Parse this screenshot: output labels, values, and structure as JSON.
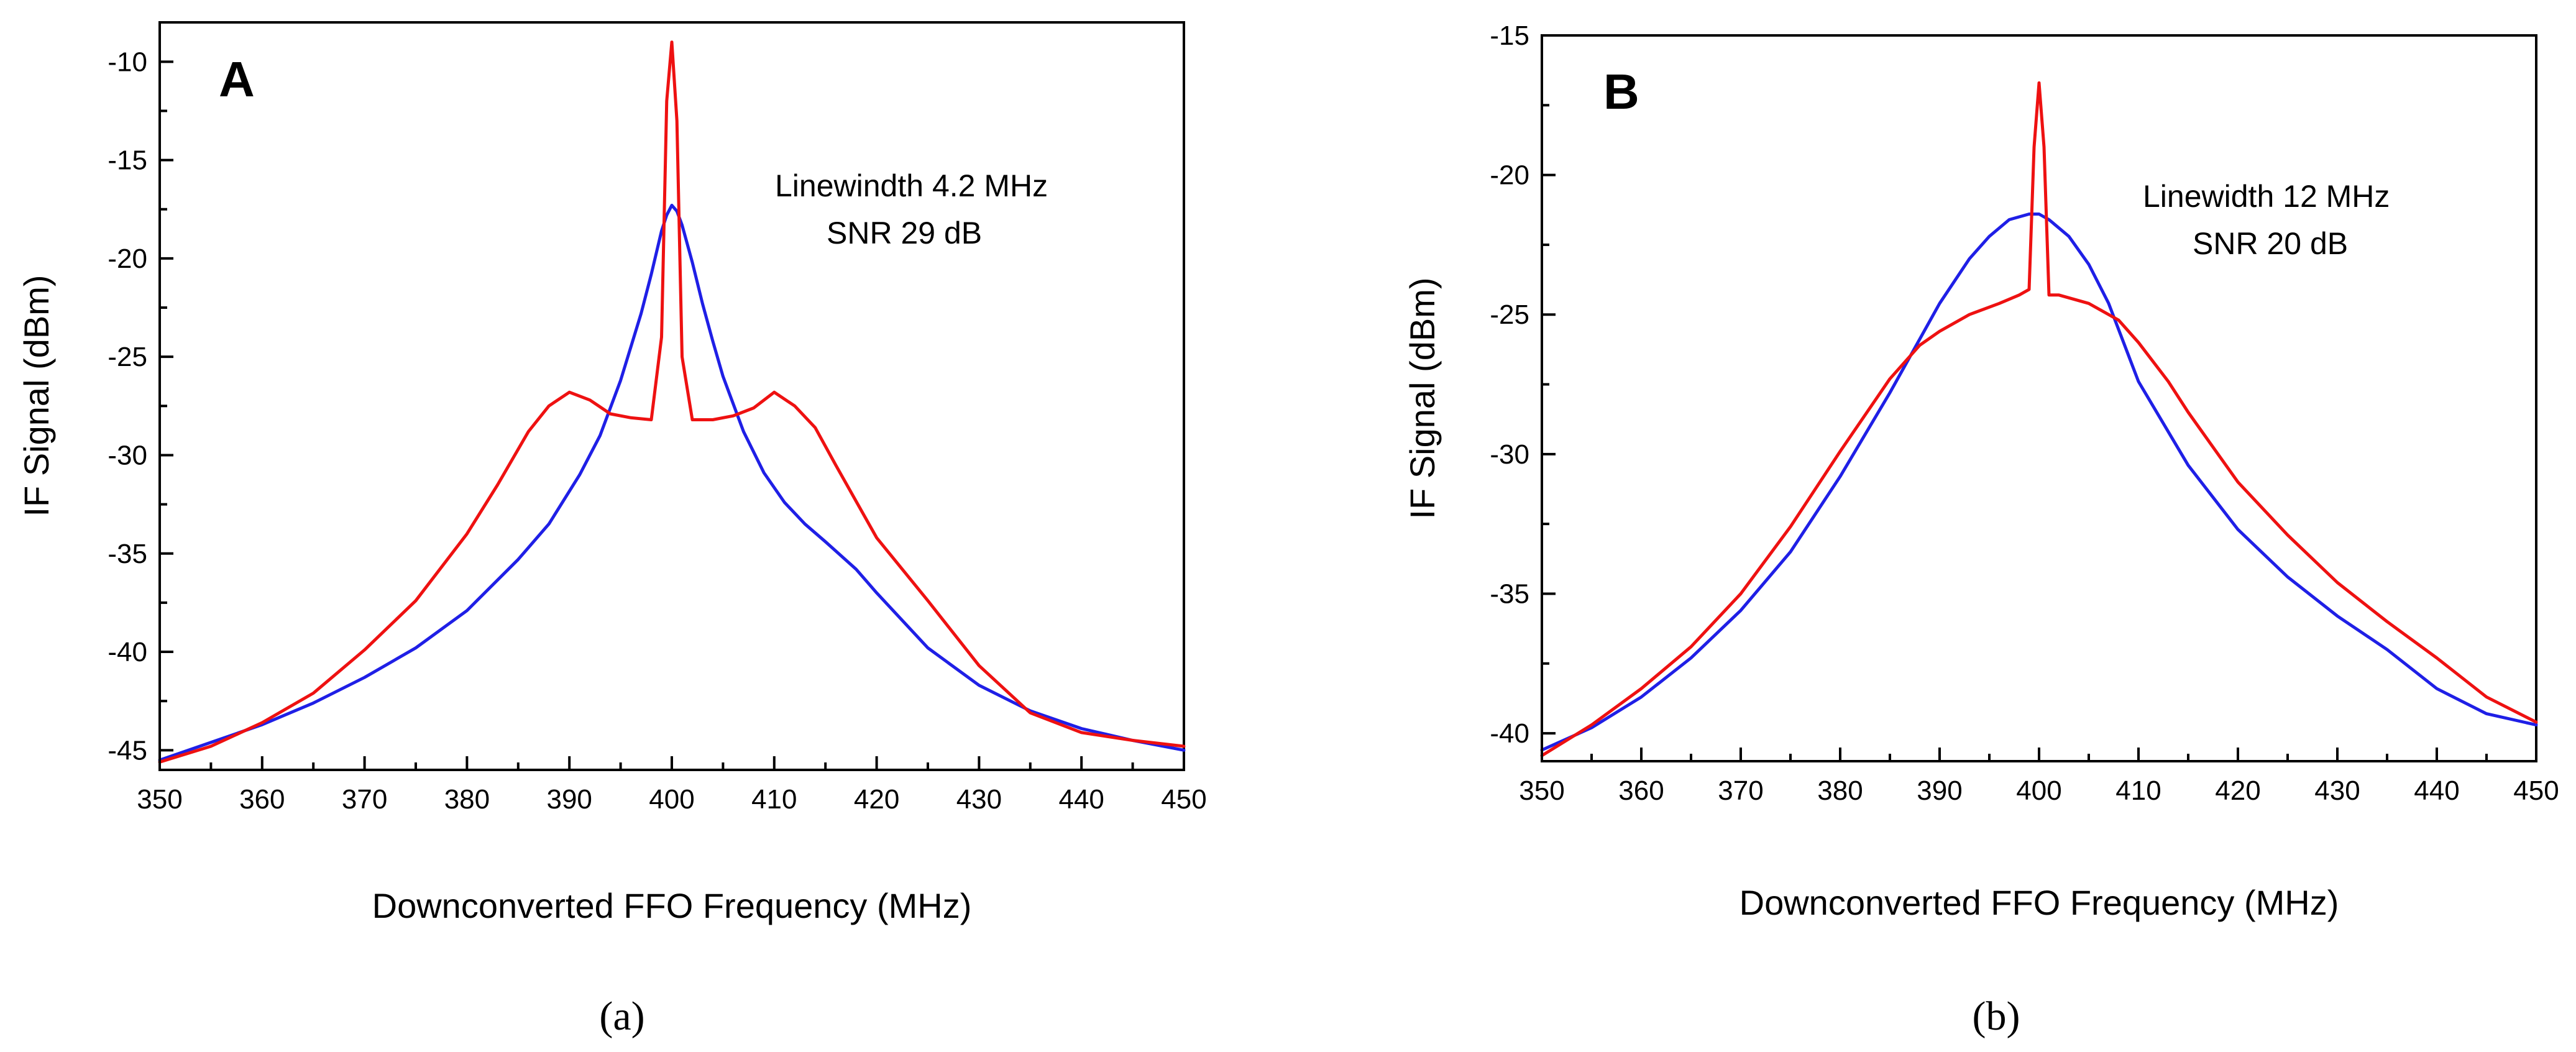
{
  "chart_data": [
    {
      "type": "line",
      "panel_letter": "A",
      "caption": "(a)",
      "xlabel": "Downconverted FFO Frequency (MHz)",
      "ylabel": "IF Signal (dBm)",
      "xlim": [
        350,
        450
      ],
      "ylim": [
        -46,
        -8
      ],
      "xticks": [
        "350",
        "360",
        "370",
        "380",
        "390",
        "400",
        "410",
        "420",
        "430",
        "440",
        "450"
      ],
      "yticks": [
        "-10",
        "-15",
        "-20",
        "-25",
        "-30",
        "-35",
        "-40",
        "-45"
      ],
      "annotation": [
        "Linewindth 4.2 MHz",
        "SNR 29 dB"
      ],
      "series": [
        {
          "name": "blue",
          "color": "#1f1fe6",
          "x": [
            350,
            355,
            360,
            365,
            370,
            375,
            380,
            385,
            388,
            391,
            393,
            395,
            397,
            398,
            399,
            399.5,
            400,
            400.5,
            401,
            402,
            403,
            404,
            405,
            407,
            409,
            411,
            413,
            415,
            418,
            420,
            425,
            430,
            435,
            440,
            445,
            450
          ],
          "y": [
            -45.5,
            -44.6,
            -43.7,
            -42.6,
            -41.3,
            -39.8,
            -37.9,
            -35.3,
            -33.5,
            -31.0,
            -29.0,
            -26.2,
            -22.8,
            -20.8,
            -18.6,
            -17.8,
            -17.3,
            -17.6,
            -18.3,
            -20.2,
            -22.3,
            -24.2,
            -26.0,
            -28.8,
            -30.9,
            -32.4,
            -33.5,
            -34.4,
            -35.8,
            -37.0,
            -39.8,
            -41.7,
            -43.0,
            -43.9,
            -44.5,
            -45.0
          ]
        },
        {
          "name": "red",
          "color": "#ee1111",
          "x": [
            350,
            355,
            360,
            365,
            370,
            375,
            380,
            383,
            386,
            388,
            390,
            392,
            394,
            396,
            398,
            399,
            399.5,
            400,
            400.5,
            401,
            402,
            404,
            406,
            408,
            410,
            412,
            414,
            416,
            420,
            425,
            430,
            435,
            440,
            445,
            450
          ],
          "y": [
            -45.6,
            -44.8,
            -43.6,
            -42.1,
            -39.9,
            -37.4,
            -34.0,
            -31.5,
            -28.8,
            -27.5,
            -26.8,
            -27.2,
            -27.9,
            -28.1,
            -28.2,
            -24.0,
            -12.0,
            -9.0,
            -13.0,
            -25.0,
            -28.2,
            -28.2,
            -28.0,
            -27.6,
            -26.8,
            -27.5,
            -28.6,
            -30.5,
            -34.2,
            -37.4,
            -40.7,
            -43.1,
            -44.1,
            -44.5,
            -44.8
          ]
        }
      ]
    },
    {
      "type": "line",
      "panel_letter": "B",
      "caption": "(b)",
      "xlabel": "Downconverted FFO Frequency (MHz)",
      "ylabel": "IF Signal (dBm)",
      "xlim": [
        350,
        450
      ],
      "ylim": [
        -41,
        -15
      ],
      "xticks": [
        "350",
        "360",
        "370",
        "380",
        "390",
        "400",
        "410",
        "420",
        "430",
        "440",
        "450"
      ],
      "yticks": [
        "-15",
        "-20",
        "-25",
        "-30",
        "-35",
        "-40"
      ],
      "annotation": [
        "Linewidth 12 MHz",
        "SNR 20 dB"
      ],
      "series": [
        {
          "name": "blue",
          "color": "#1f1fe6",
          "x": [
            350,
            355,
            360,
            365,
            370,
            375,
            380,
            385,
            390,
            393,
            395,
            397,
            399,
            400,
            401,
            403,
            405,
            407,
            410,
            415,
            420,
            425,
            430,
            435,
            440,
            445,
            450
          ],
          "y": [
            -40.6,
            -39.8,
            -38.7,
            -37.3,
            -35.6,
            -33.5,
            -30.8,
            -27.8,
            -24.6,
            -23.0,
            -22.2,
            -21.6,
            -21.4,
            -21.4,
            -21.6,
            -22.2,
            -23.2,
            -24.6,
            -27.4,
            -30.4,
            -32.7,
            -34.4,
            -35.8,
            -37.0,
            -38.4,
            -39.3,
            -39.7
          ]
        },
        {
          "name": "red",
          "color": "#ee1111",
          "x": [
            350,
            355,
            360,
            365,
            370,
            375,
            380,
            385,
            388,
            390,
            393,
            396,
            398,
            399,
            399.5,
            400,
            400.5,
            401,
            402,
            405,
            408,
            410,
            413,
            415,
            420,
            425,
            430,
            435,
            440,
            445,
            450
          ],
          "y": [
            -40.8,
            -39.7,
            -38.4,
            -36.9,
            -35.0,
            -32.6,
            -29.9,
            -27.3,
            -26.1,
            -25.6,
            -25.0,
            -24.6,
            -24.3,
            -24.1,
            -19.0,
            -16.7,
            -19.0,
            -24.3,
            -24.3,
            -24.6,
            -25.2,
            -26.0,
            -27.4,
            -28.5,
            -31.0,
            -32.9,
            -34.6,
            -36.0,
            -37.3,
            -38.7,
            -39.6
          ]
        }
      ]
    }
  ]
}
